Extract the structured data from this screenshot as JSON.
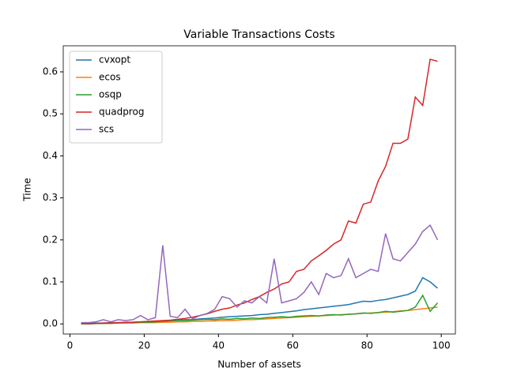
{
  "chart_data": {
    "type": "line",
    "title": "Variable Transactions Costs",
    "x_label": "Number of assets",
    "y_label": "Time",
    "x": [
      3,
      5,
      7,
      9,
      11,
      13,
      15,
      17,
      19,
      21,
      23,
      25,
      27,
      29,
      31,
      33,
      35,
      37,
      39,
      41,
      43,
      45,
      47,
      49,
      51,
      53,
      55,
      57,
      59,
      61,
      63,
      65,
      67,
      69,
      71,
      73,
      75,
      77,
      79,
      81,
      83,
      85,
      87,
      89,
      91,
      93,
      95,
      97,
      99
    ],
    "series": [
      {
        "name": "cvxopt",
        "color": "#1f77b4",
        "values": [
          0.001,
          0.001,
          0.002,
          0.002,
          0.003,
          0.003,
          0.004,
          0.004,
          0.005,
          0.005,
          0.006,
          0.007,
          0.008,
          0.009,
          0.01,
          0.01,
          0.012,
          0.013,
          0.014,
          0.016,
          0.017,
          0.018,
          0.019,
          0.02,
          0.022,
          0.023,
          0.025,
          0.027,
          0.029,
          0.031,
          0.034,
          0.036,
          0.038,
          0.04,
          0.042,
          0.044,
          0.046,
          0.05,
          0.054,
          0.053,
          0.056,
          0.058,
          0.062,
          0.066,
          0.07,
          0.078,
          0.11,
          0.1,
          0.085
        ]
      },
      {
        "name": "ecos",
        "color": "#ff7f0e",
        "values": [
          0,
          0,
          0.001,
          0.001,
          0.001,
          0.002,
          0.002,
          0.002,
          0.003,
          0.003,
          0.003,
          0.004,
          0.004,
          0.005,
          0.005,
          0.006,
          0.006,
          0.007,
          0.007,
          0.008,
          0.008,
          0.009,
          0.01,
          0.01,
          0.011,
          0.012,
          0.013,
          0.014,
          0.015,
          0.016,
          0.017,
          0.018,
          0.019,
          0.02,
          0.021,
          0.022,
          0.023,
          0.024,
          0.025,
          0.026,
          0.027,
          0.028,
          0.029,
          0.031,
          0.032,
          0.034,
          0.036,
          0.038,
          0.04
        ]
      },
      {
        "name": "osqp",
        "color": "#2ca02c",
        "values": [
          0,
          0,
          0.001,
          0.001,
          0.002,
          0.002,
          0.003,
          0.003,
          0.004,
          0.004,
          0.005,
          0.006,
          0.007,
          0.008,
          0.008,
          0.009,
          0.01,
          0.011,
          0.01,
          0.012,
          0.011,
          0.013,
          0.012,
          0.014,
          0.013,
          0.015,
          0.016,
          0.017,
          0.016,
          0.018,
          0.019,
          0.02,
          0.019,
          0.021,
          0.022,
          0.021,
          0.023,
          0.024,
          0.026,
          0.025,
          0.027,
          0.03,
          0.028,
          0.03,
          0.032,
          0.04,
          0.068,
          0.03,
          0.05
        ]
      },
      {
        "name": "quadprog",
        "color": "#d62728",
        "values": [
          0.001,
          0.001,
          0.001,
          0.002,
          0.002,
          0.003,
          0.003,
          0.004,
          0.005,
          0.006,
          0.007,
          0.008,
          0.009,
          0.011,
          0.013,
          0.016,
          0.02,
          0.024,
          0.03,
          0.035,
          0.038,
          0.045,
          0.05,
          0.058,
          0.065,
          0.075,
          0.083,
          0.095,
          0.1,
          0.125,
          0.13,
          0.15,
          0.162,
          0.175,
          0.19,
          0.2,
          0.245,
          0.24,
          0.285,
          0.29,
          0.34,
          0.375,
          0.43,
          0.43,
          0.44,
          0.54,
          0.52,
          0.63,
          0.625
        ]
      },
      {
        "name": "scs",
        "color": "#9467bd",
        "values": [
          0.003,
          0.003,
          0.005,
          0.01,
          0.005,
          0.01,
          0.008,
          0.01,
          0.02,
          0.01,
          0.015,
          0.187,
          0.018,
          0.015,
          0.035,
          0.012,
          0.02,
          0.025,
          0.035,
          0.065,
          0.06,
          0.04,
          0.055,
          0.05,
          0.065,
          0.05,
          0.155,
          0.05,
          0.055,
          0.06,
          0.075,
          0.1,
          0.07,
          0.12,
          0.11,
          0.115,
          0.155,
          0.11,
          0.12,
          0.13,
          0.125,
          0.215,
          0.155,
          0.15,
          0.17,
          0.19,
          0.22,
          0.235,
          0.2
        ]
      }
    ],
    "xlim": [
      -1.8,
      103.8
    ],
    "ylim": [
      -0.024,
      0.662
    ],
    "xticks": [
      0,
      20,
      40,
      60,
      80,
      100
    ],
    "yticks": [
      {
        "value": 0,
        "label": "0.0"
      },
      0.1,
      0.2,
      0.3,
      0.4,
      0.5,
      0.6
    ],
    "legend": "upper left",
    "grid": false
  }
}
